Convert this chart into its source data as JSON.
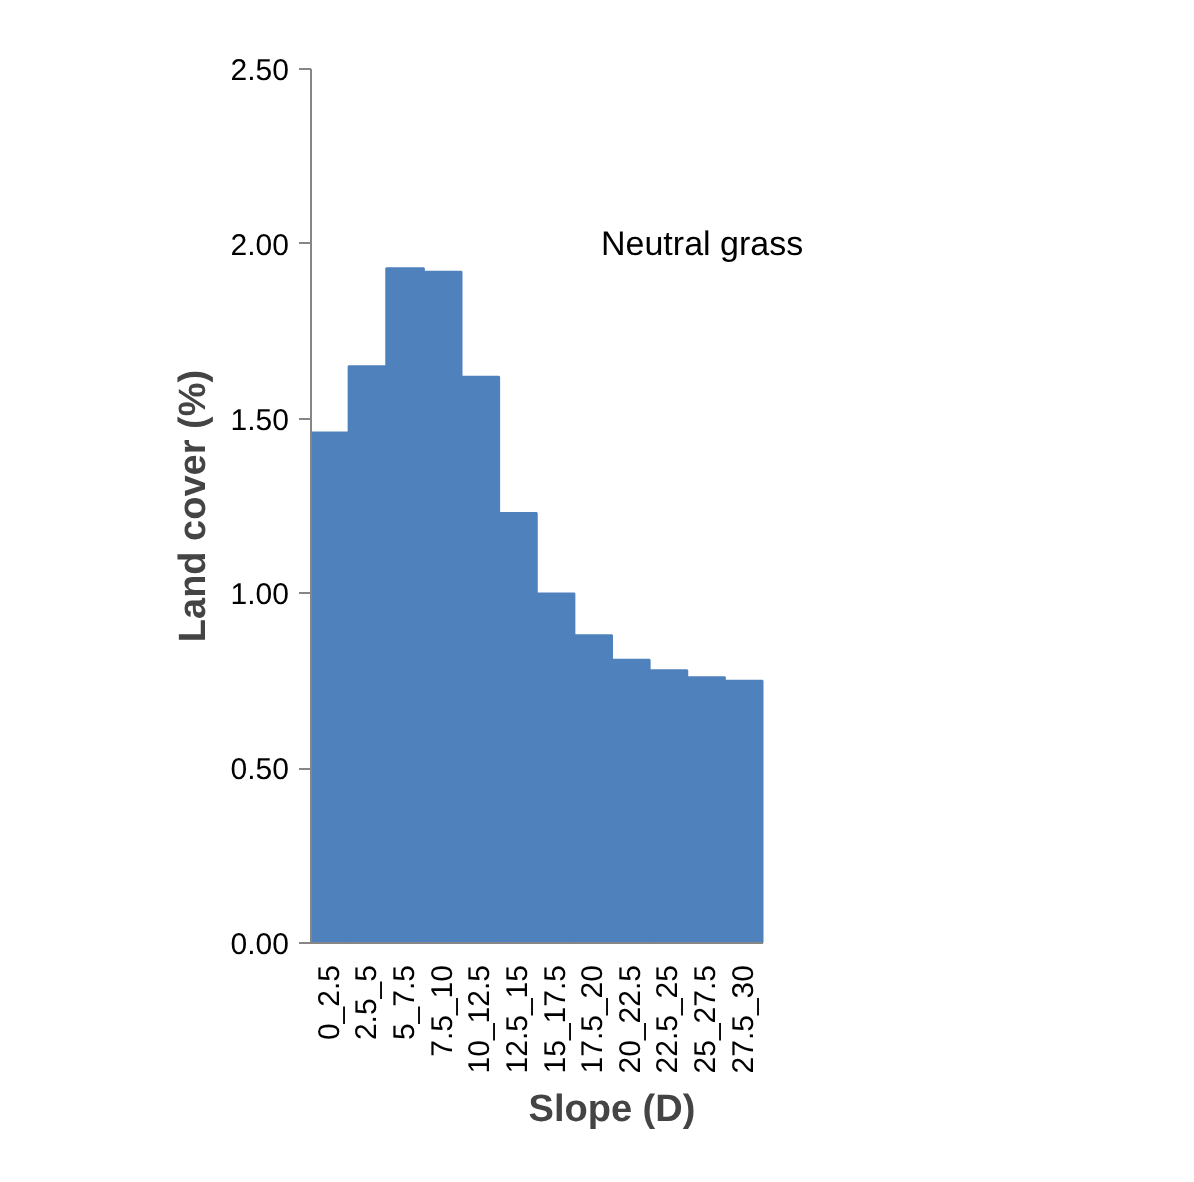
{
  "chart_data": {
    "type": "bar",
    "xlabel": "Slope (D)",
    "ylabel": "Land cover (%)",
    "annotations": [
      "Neutral grass"
    ],
    "categories": [
      "0_2.5",
      "2.5_5",
      "5_7.5",
      "7.5_10",
      "10_12.5",
      "12.5_15",
      "15_17.5",
      "17.5_20",
      "20_22.5",
      "22.5_25",
      "25_27.5",
      "27.5_30"
    ],
    "values": [
      1.46,
      1.65,
      1.93,
      1.92,
      1.62,
      1.23,
      1.0,
      0.88,
      0.81,
      0.78,
      0.76,
      0.75
    ],
    "color": "#4f81bd",
    "ylim": [
      0,
      2.5
    ],
    "yticks": [
      {
        "value": 0,
        "label": "0.00"
      },
      {
        "value": 0.5,
        "label": "0.50"
      },
      {
        "value": 1,
        "label": "1.00"
      },
      {
        "value": 1.5,
        "label": "1.50"
      },
      {
        "value": 2,
        "label": "2.00"
      },
      {
        "value": 2.5,
        "label": "2.50"
      }
    ],
    "grid": false
  }
}
